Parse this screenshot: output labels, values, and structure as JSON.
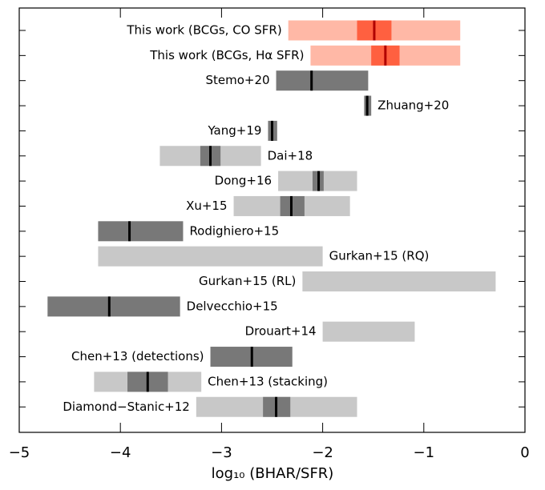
{
  "chart_data": {
    "type": "range",
    "xlabel": "log₁₀ (BHAR/SFR)",
    "xlim": [
      -5,
      0
    ],
    "xticks": [
      {
        "value": -5,
        "label": "−5"
      },
      {
        "value": -4,
        "label": "−4"
      },
      {
        "value": -3,
        "label": "−3"
      },
      {
        "value": -2,
        "label": "−2"
      },
      {
        "value": -1,
        "label": "−1"
      },
      0
    ],
    "rows": [
      {
        "label": "This work (BCGs, CO SFR)",
        "range": [
          -2.34,
          -0.64
        ],
        "core": [
          -1.66,
          -1.32
        ],
        "median": -1.49,
        "color": "#ffb8a6",
        "core_color": "#ff6040",
        "median_color": "#b00000"
      },
      {
        "label": "This work (BCGs, Hα SFR)",
        "range": [
          -2.12,
          -0.64
        ],
        "core": [
          -1.52,
          -1.24
        ],
        "median": -1.38,
        "color": "#ffb8a6",
        "core_color": "#ff6040",
        "median_color": "#b00000"
      },
      {
        "label": "Stemo+20",
        "core": [
          -2.46,
          -1.55
        ],
        "median": -2.11,
        "core_color": "#787878",
        "median_color": "#000000"
      },
      {
        "label": "Zhuang+20",
        "core": [
          -1.59,
          -1.52
        ],
        "median": -1.56,
        "core_color": "#787878",
        "median_color": "#000000"
      },
      {
        "label": "Yang+19",
        "core": [
          -2.54,
          -2.45
        ],
        "median": -2.5,
        "core_color": "#787878",
        "median_color": "#000000"
      },
      {
        "label": "Dai+18",
        "range": [
          -3.61,
          -2.61
        ],
        "core": [
          -3.21,
          -3.01
        ],
        "median": -3.11,
        "color": "#c8c8c8",
        "core_color": "#787878",
        "median_color": "#000000"
      },
      {
        "label": "Dong+16",
        "range": [
          -2.44,
          -1.66
        ],
        "core": [
          -2.1,
          -1.99
        ],
        "median": -2.04,
        "color": "#c8c8c8",
        "core_color": "#787878",
        "median_color": "#000000"
      },
      {
        "label": "Xu+15",
        "range": [
          -2.88,
          -1.73
        ],
        "core": [
          -2.42,
          -2.18
        ],
        "median": -2.31,
        "color": "#c8c8c8",
        "core_color": "#787878",
        "median_color": "#000000"
      },
      {
        "label": "Rodighiero+15",
        "core": [
          -4.22,
          -3.38
        ],
        "median": -3.91,
        "core_color": "#787878",
        "median_color": "#000000"
      },
      {
        "label": "Gurkan+15 (RQ)",
        "range": [
          -4.22,
          -2.0
        ],
        "color": "#c8c8c8"
      },
      {
        "label": "Gurkan+15 (RL)",
        "range": [
          -2.2,
          -0.29
        ],
        "color": "#c8c8c8"
      },
      {
        "label": "Delvecchio+15",
        "core": [
          -4.72,
          -3.41
        ],
        "median": -4.11,
        "core_color": "#787878",
        "median_color": "#000000"
      },
      {
        "label": "Drouart+14",
        "range": [
          -2.0,
          -1.09
        ],
        "color": "#c8c8c8"
      },
      {
        "label": "Chen+13 (detections)",
        "core": [
          -3.11,
          -2.3
        ],
        "median": -2.7,
        "core_color": "#787878",
        "median_color": "#000000"
      },
      {
        "label": "Chen+13 (stacking)",
        "range": [
          -4.26,
          -3.2
        ],
        "core": [
          -3.93,
          -3.53
        ],
        "median": -3.73,
        "color": "#c8c8c8",
        "core_color": "#787878",
        "median_color": "#000000"
      },
      {
        "label": "Diamond−Stanic+12",
        "range": [
          -3.25,
          -1.66
        ],
        "core": [
          -2.59,
          -2.32
        ],
        "median": -2.46,
        "color": "#c8c8c8",
        "core_color": "#787878",
        "median_color": "#000000"
      }
    ]
  }
}
